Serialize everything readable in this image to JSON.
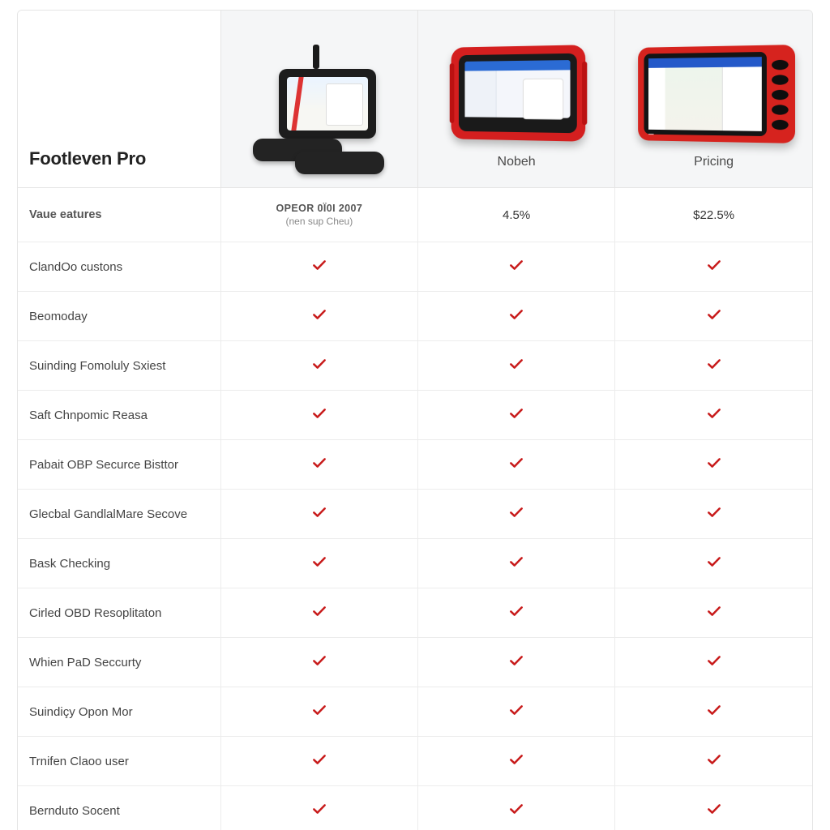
{
  "brand_title": "Footleven Pro",
  "columns": [
    {
      "name": null
    },
    {
      "name": "Nobeh"
    },
    {
      "name": "Pricing"
    }
  ],
  "subheader": {
    "label": "Vaue eatures",
    "cells": [
      {
        "line1": "ОРЕОR 0Ї0I 2007",
        "line2": "(nen sup Cheu)"
      },
      {
        "metric": "4.5%"
      },
      {
        "metric": "$22.5%"
      }
    ]
  },
  "checkmark_color": "#c81b1b",
  "features": [
    {
      "label": "ClandОо custons",
      "c1": true,
      "c2": true,
      "c3": true
    },
    {
      "label": "Beomoday",
      "c1": true,
      "c2": true,
      "c3": true
    },
    {
      "label": "Suinding Fomoluly Sxiest",
      "c1": true,
      "c2": true,
      "c3": true
    },
    {
      "label": "Saft Chnpomic Reasa",
      "c1": true,
      "c2": true,
      "c3": true
    },
    {
      "label": "Pabait OBP Securce Bisttor",
      "c1": true,
      "c2": true,
      "c3": true
    },
    {
      "label": "Glecbal GandlalMare Secove",
      "c1": true,
      "c2": true,
      "c3": true
    },
    {
      "label": "Bask Checking",
      "c1": true,
      "c2": true,
      "c3": true
    },
    {
      "label": "Cirled OBD Resoplitaton",
      "c1": true,
      "c2": true,
      "c3": true
    },
    {
      "label": "Whien PaD Seccurty",
      "c1": true,
      "c2": true,
      "c3": true
    },
    {
      "label": "Suindiçy Opon Mor",
      "c1": true,
      "c2": true,
      "c3": true
    },
    {
      "label": "Trnifen Claoo user",
      "c1": true,
      "c2": true,
      "c3": true
    },
    {
      "label": "Bernduto Soсent",
      "c1": true,
      "c2": true,
      "c3": true
    }
  ],
  "style": {
    "border_color": "#e5e5e5",
    "row_border_color": "#ececec",
    "header_bg": "#f5f6f7",
    "text_color": "#444444",
    "brand_fontsize_pt": 17,
    "label_fontsize_pt": 11
  }
}
